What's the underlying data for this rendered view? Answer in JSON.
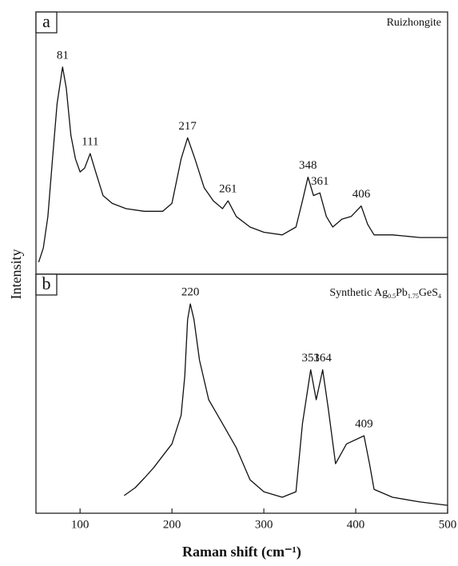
{
  "chart_data": [
    {
      "type": "line",
      "panel_label": "a",
      "sample": "Ruizhongite",
      "xlim": [
        52,
        500
      ],
      "ylim": [
        0,
        100
      ],
      "x": [
        55,
        60,
        65,
        70,
        75,
        81,
        85,
        90,
        95,
        100,
        105,
        111,
        117,
        125,
        135,
        150,
        170,
        190,
        200,
        210,
        217,
        225,
        235,
        245,
        255,
        261,
        270,
        285,
        300,
        320,
        335,
        342,
        348,
        354,
        361,
        368,
        375,
        385,
        395,
        406,
        413,
        420,
        440,
        470,
        500
      ],
      "values": [
        4.6,
        10,
        22,
        44,
        65,
        79,
        71,
        53,
        44,
        39,
        40.5,
        46,
        39,
        30,
        27,
        25,
        24,
        24,
        27,
        44,
        52,
        44,
        33,
        28,
        25,
        28,
        22,
        18,
        16,
        15,
        18,
        28,
        37,
        30,
        31,
        22,
        18,
        21,
        22,
        26,
        19,
        15,
        15,
        14,
        14
      ],
      "peaks": [
        81,
        111,
        217,
        261,
        348,
        361,
        406
      ]
    },
    {
      "type": "line",
      "panel_label": "b",
      "sample_parts": [
        "Synthetic Ag",
        "0.5",
        "Pb",
        "1.75",
        "GeS",
        "4"
      ],
      "xlim": [
        52,
        500
      ],
      "ylim": [
        0,
        100
      ],
      "xticks": [
        100,
        200,
        300,
        400,
        500
      ],
      "xlabel": "Raman shift (cm⁻¹)",
      "ylabel": "Intensity",
      "x": [
        148,
        160,
        170,
        180,
        190,
        200,
        210,
        214,
        217,
        220,
        224,
        230,
        240,
        255,
        270,
        285,
        300,
        320,
        335,
        342,
        351,
        357,
        364,
        370,
        378,
        390,
        409,
        415,
        420,
        440,
        470,
        500
      ],
      "values": [
        7.4,
        10.7,
        14.7,
        19,
        24,
        29,
        41,
        57.5,
        81,
        87.6,
        81,
        64,
        47.5,
        37.5,
        27.4,
        14,
        9,
        6.7,
        9,
        37.5,
        60,
        47.5,
        60,
        44,
        20.7,
        29,
        32.4,
        20.7,
        10,
        6.7,
        4.7,
        3.3
      ],
      "peaks": [
        220,
        351,
        364,
        409
      ]
    }
  ]
}
